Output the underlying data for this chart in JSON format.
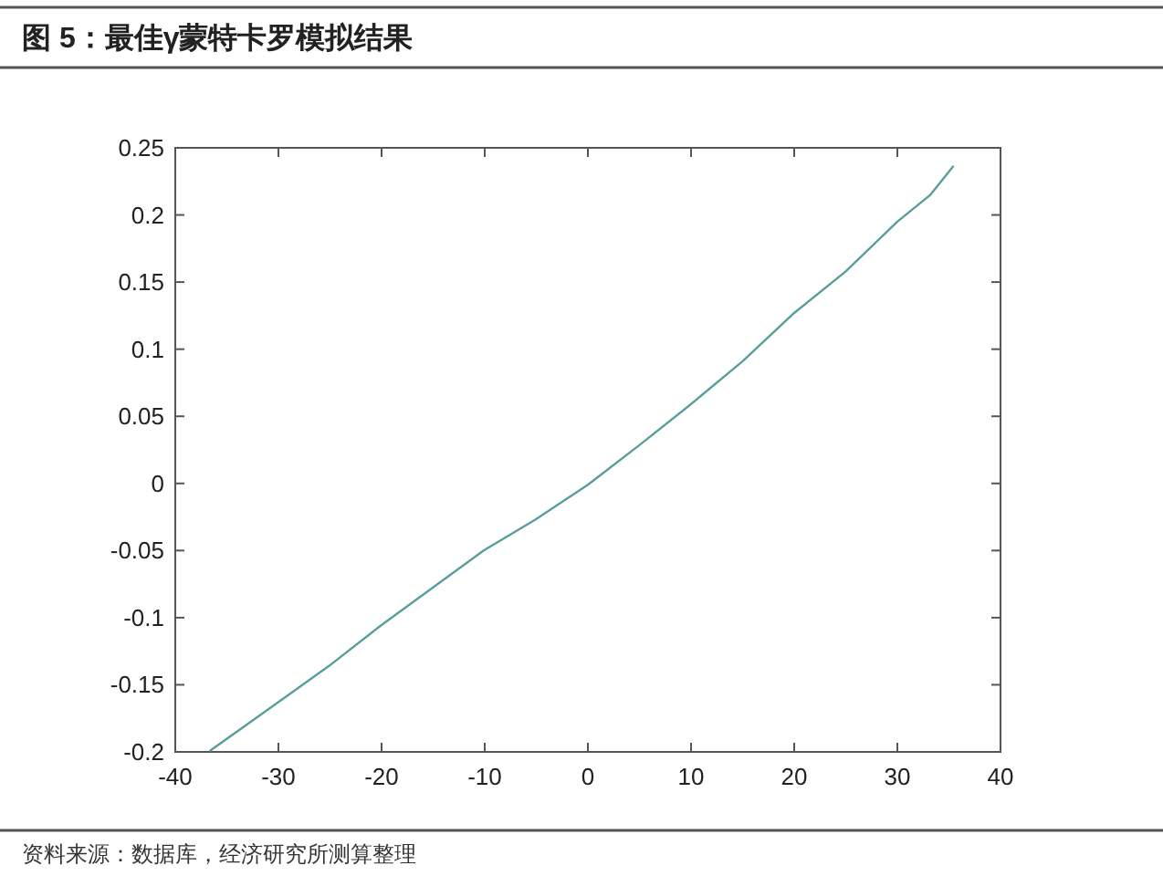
{
  "chart_data": {
    "type": "line",
    "title": "图 5：最佳γ蒙特卡罗模拟结果",
    "annotations": [
      "资料来源：数据库，经济研究所测算整理"
    ],
    "x": [
      -36.6,
      -30.2,
      -25.1,
      -20.1,
      -15.1,
      -10.1,
      -5.1,
      0,
      4.9,
      9.9,
      15,
      20,
      25,
      30,
      33.2,
      35.4
    ],
    "series": [
      {
        "color": "#5a9e9c",
        "values": [
          -0.199,
          -0.164,
          -0.136,
          -0.106,
          -0.078,
          -0.05,
          -0.027,
          -0.001,
          0.028,
          0.0585,
          0.091,
          0.127,
          0.158,
          0.195,
          0.215,
          0.236
        ]
      }
    ],
    "xlim": [
      -40,
      40
    ],
    "ylim": [
      -0.2,
      0.25
    ],
    "xticks": [
      -40,
      -30,
      -20,
      -10,
      0,
      10,
      20,
      30,
      40
    ],
    "yticks": [
      -0.2,
      -0.15,
      -0.1,
      -0.05,
      0,
      0.05,
      0.1,
      0.15,
      0.2,
      0.25
    ]
  }
}
